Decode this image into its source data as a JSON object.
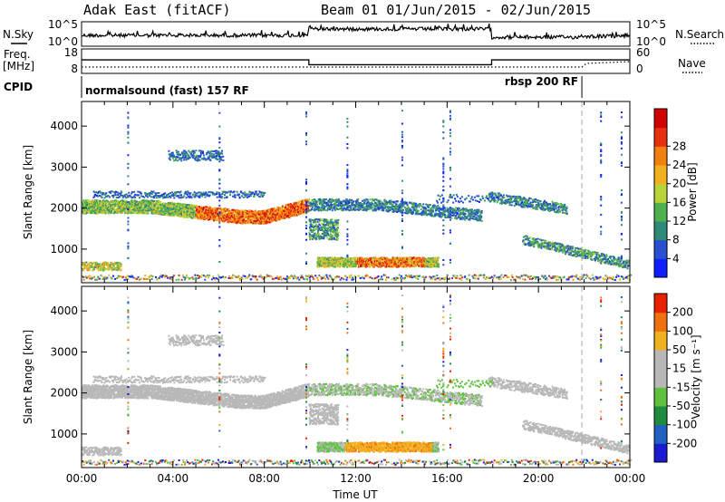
{
  "header": {
    "station": "Adak East (fitACF)",
    "beam_date": "Beam 01  01/Jun/2015 - 02/Jun/2015"
  },
  "summary_panel": {
    "nsky_label": "N.Sky",
    "nsearch_label": "N.Search",
    "noise_ticks_left": [
      "10^5",
      "10^0"
    ],
    "noise_ticks_right": [
      "10^5",
      "10^0"
    ],
    "freq_label": "Freq.",
    "freq_unit": "[MHz]",
    "freq_ticks": [
      "18",
      "8"
    ],
    "nave_label": "Nave",
    "nave_ticks": [
      "60",
      "0"
    ],
    "cpid_label": "CPID",
    "cpid_modes": [
      "normalsound (fast) 157 RF",
      "rbsp 200 RF"
    ],
    "cpid_switch_hour": 21.9,
    "freq_segments": [
      {
        "start": 0,
        "end": 9.95,
        "mhz": 13.2
      },
      {
        "start": 9.95,
        "end": 17.95,
        "mhz": 10.6
      },
      {
        "start": 17.95,
        "end": 24,
        "mhz": 13.2
      }
    ]
  },
  "chart_data": [
    {
      "type": "heatmap",
      "name": "power",
      "ylabel": "Slant Range [km]",
      "xlabel": "",
      "ylim": [
        180,
        4600
      ],
      "xlim": [
        0,
        24
      ],
      "ytick_labels": [
        "1000",
        "2000",
        "3000",
        "4000"
      ],
      "ytick_values": [
        1000,
        2000,
        3000,
        4000
      ],
      "xtick_labels": [
        "00:00",
        "04:00",
        "08:00",
        "12:00",
        "16:00",
        "20:00",
        "00:00"
      ],
      "colorbar": {
        "label": "Power [dB]",
        "ticks": [
          "4",
          "8",
          "12",
          "16",
          "20",
          "24",
          "28"
        ],
        "colors": [
          "#0f1eff",
          "#2a4fd0",
          "#2f8a7a",
          "#4fb04f",
          "#b8d43a",
          "#f0b020",
          "#f08010",
          "#e83010",
          "#d00000"
        ]
      }
    },
    {
      "type": "heatmap",
      "name": "velocity",
      "ylabel": "Slant Range [km]",
      "xlabel": "Time UT",
      "ylim": [
        180,
        4600
      ],
      "xlim": [
        0,
        24
      ],
      "ytick_labels": [
        "1000",
        "2000",
        "3000",
        "4000"
      ],
      "ytick_values": [
        1000,
        2000,
        3000,
        4000
      ],
      "xtick_labels": [
        "00:00",
        "04:00",
        "08:00",
        "12:00",
        "16:00",
        "20:00",
        "00:00"
      ],
      "colorbar": {
        "label": "Velocity [m s⁻¹]",
        "ticks": [
          "200",
          "100",
          "50",
          "15",
          "-15",
          "-50",
          "-100",
          "-200"
        ],
        "colors": [
          "#1a1ad0",
          "#2060c0",
          "#208a40",
          "#60c040",
          "#b8b8b8",
          "#b8b8b8",
          "#f0b020",
          "#f07010",
          "#e82000"
        ]
      }
    }
  ]
}
